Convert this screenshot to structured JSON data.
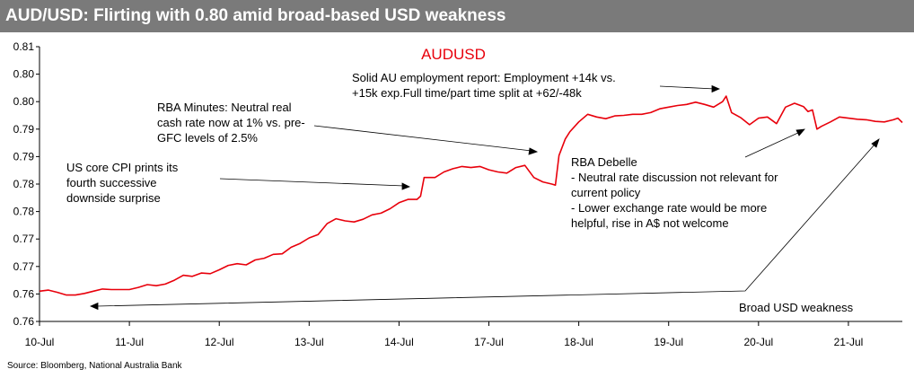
{
  "header": {
    "title": "AUD/USD: Flirting with 0.80 amid broad-based USD weakness"
  },
  "footer": {
    "source": "Source: Bloomberg, National Australia Bank"
  },
  "colors": {
    "line": "#e8000b",
    "title_bar": "#7a7a7a",
    "axis": "#000000"
  },
  "chart_data": {
    "type": "line",
    "title": "AUDUSD",
    "xlabel": "",
    "ylabel": "",
    "ylim": [
      0.755,
      0.805
    ],
    "yticks": [
      0.755,
      0.76,
      0.765,
      0.77,
      0.775,
      0.78,
      0.785,
      0.79,
      0.795,
      0.8,
      0.805
    ],
    "ytick_labels": [
      "0.76",
      "0.76",
      "0.77",
      "0.77",
      "0.78",
      "0.78",
      "0.79",
      "0.79",
      "0.80",
      "0.80",
      "0.81"
    ],
    "xlim": [
      0,
      9.6
    ],
    "categories": [
      "10-Jul",
      "11-Jul",
      "12-Jul",
      "13-Jul",
      "14-Jul",
      "17-Jul",
      "18-Jul",
      "19-Jul",
      "20-Jul",
      "21-Jul"
    ],
    "series": [
      {
        "name": "AUDUSD",
        "x": [
          0,
          0.1,
          0.2,
          0.3,
          0.4,
          0.5,
          0.6,
          0.7,
          0.8,
          0.9,
          1.0,
          1.1,
          1.2,
          1.3,
          1.4,
          1.5,
          1.6,
          1.7,
          1.8,
          1.9,
          2.0,
          2.1,
          2.2,
          2.3,
          2.4,
          2.5,
          2.6,
          2.7,
          2.8,
          2.9,
          3.0,
          3.1,
          3.2,
          3.3,
          3.4,
          3.5,
          3.6,
          3.7,
          3.8,
          3.9,
          4.0,
          4.1,
          4.2,
          4.24,
          4.28,
          4.4,
          4.5,
          4.6,
          4.7,
          4.8,
          4.9,
          5.0,
          5.1,
          5.2,
          5.3,
          5.4,
          5.5,
          5.6,
          5.7,
          5.74,
          5.78,
          5.85,
          5.9,
          6.0,
          6.1,
          6.2,
          6.3,
          6.4,
          6.5,
          6.6,
          6.7,
          6.8,
          6.9,
          7.0,
          7.1,
          7.2,
          7.3,
          7.4,
          7.5,
          7.6,
          7.64,
          7.7,
          7.8,
          7.9,
          8.0,
          8.1,
          8.2,
          8.3,
          8.4,
          8.5,
          8.55,
          8.6,
          8.65,
          8.7,
          8.8,
          8.9,
          9.0,
          9.1,
          9.2,
          9.3,
          9.4,
          9.5,
          9.55,
          9.6
        ],
        "values": [
          0.7605,
          0.7607,
          0.7603,
          0.7598,
          0.7598,
          0.7601,
          0.7605,
          0.7609,
          0.7608,
          0.7608,
          0.7608,
          0.7612,
          0.7617,
          0.7615,
          0.7618,
          0.7625,
          0.7634,
          0.7632,
          0.7638,
          0.7637,
          0.7644,
          0.7652,
          0.7655,
          0.7653,
          0.7662,
          0.7665,
          0.7672,
          0.7673,
          0.7685,
          0.7692,
          0.7702,
          0.7708,
          0.7728,
          0.7737,
          0.7733,
          0.7731,
          0.7736,
          0.7744,
          0.7747,
          0.7755,
          0.7766,
          0.7772,
          0.7772,
          0.7778,
          0.7812,
          0.7812,
          0.7822,
          0.7828,
          0.7832,
          0.783,
          0.7832,
          0.7826,
          0.7822,
          0.782,
          0.783,
          0.7834,
          0.7812,
          0.7804,
          0.78,
          0.7798,
          0.7852,
          0.7882,
          0.7895,
          0.7913,
          0.7927,
          0.7922,
          0.7919,
          0.7924,
          0.7925,
          0.7927,
          0.7927,
          0.793,
          0.7937,
          0.794,
          0.7943,
          0.7945,
          0.7949,
          0.7945,
          0.794,
          0.795,
          0.796,
          0.793,
          0.7921,
          0.7908,
          0.792,
          0.7922,
          0.791,
          0.794,
          0.7947,
          0.7941,
          0.7932,
          0.7935,
          0.79,
          0.7905,
          0.7913,
          0.7922,
          0.792,
          0.7918,
          0.7917,
          0.7914,
          0.7913,
          0.7917,
          0.792,
          0.7912
        ]
      }
    ],
    "annotations": [
      {
        "name": "employment",
        "lines": [
          "Solid AU employment report: Employment +14k vs.",
          "+15k exp.Full time/part time split at +62/-48k"
        ]
      },
      {
        "name": "rba-minutes",
        "lines": [
          "RBA Minutes: Neutral real",
          "cash rate now at 1% vs. pre-",
          "GFC levels of 2.5%"
        ]
      },
      {
        "name": "cpi",
        "lines": [
          "US core CPI prints its",
          "fourth successive",
          "downside surprise"
        ]
      },
      {
        "name": "debelle",
        "lines": [
          "RBA Debelle",
          "- Neutral rate discussion not relevant for",
          "current policy",
          "- Lower exchange rate would be more",
          "helpful, rise in A$ not welcome"
        ]
      },
      {
        "name": "usd-weakness",
        "lines": [
          "Broad USD weakness"
        ]
      }
    ]
  }
}
